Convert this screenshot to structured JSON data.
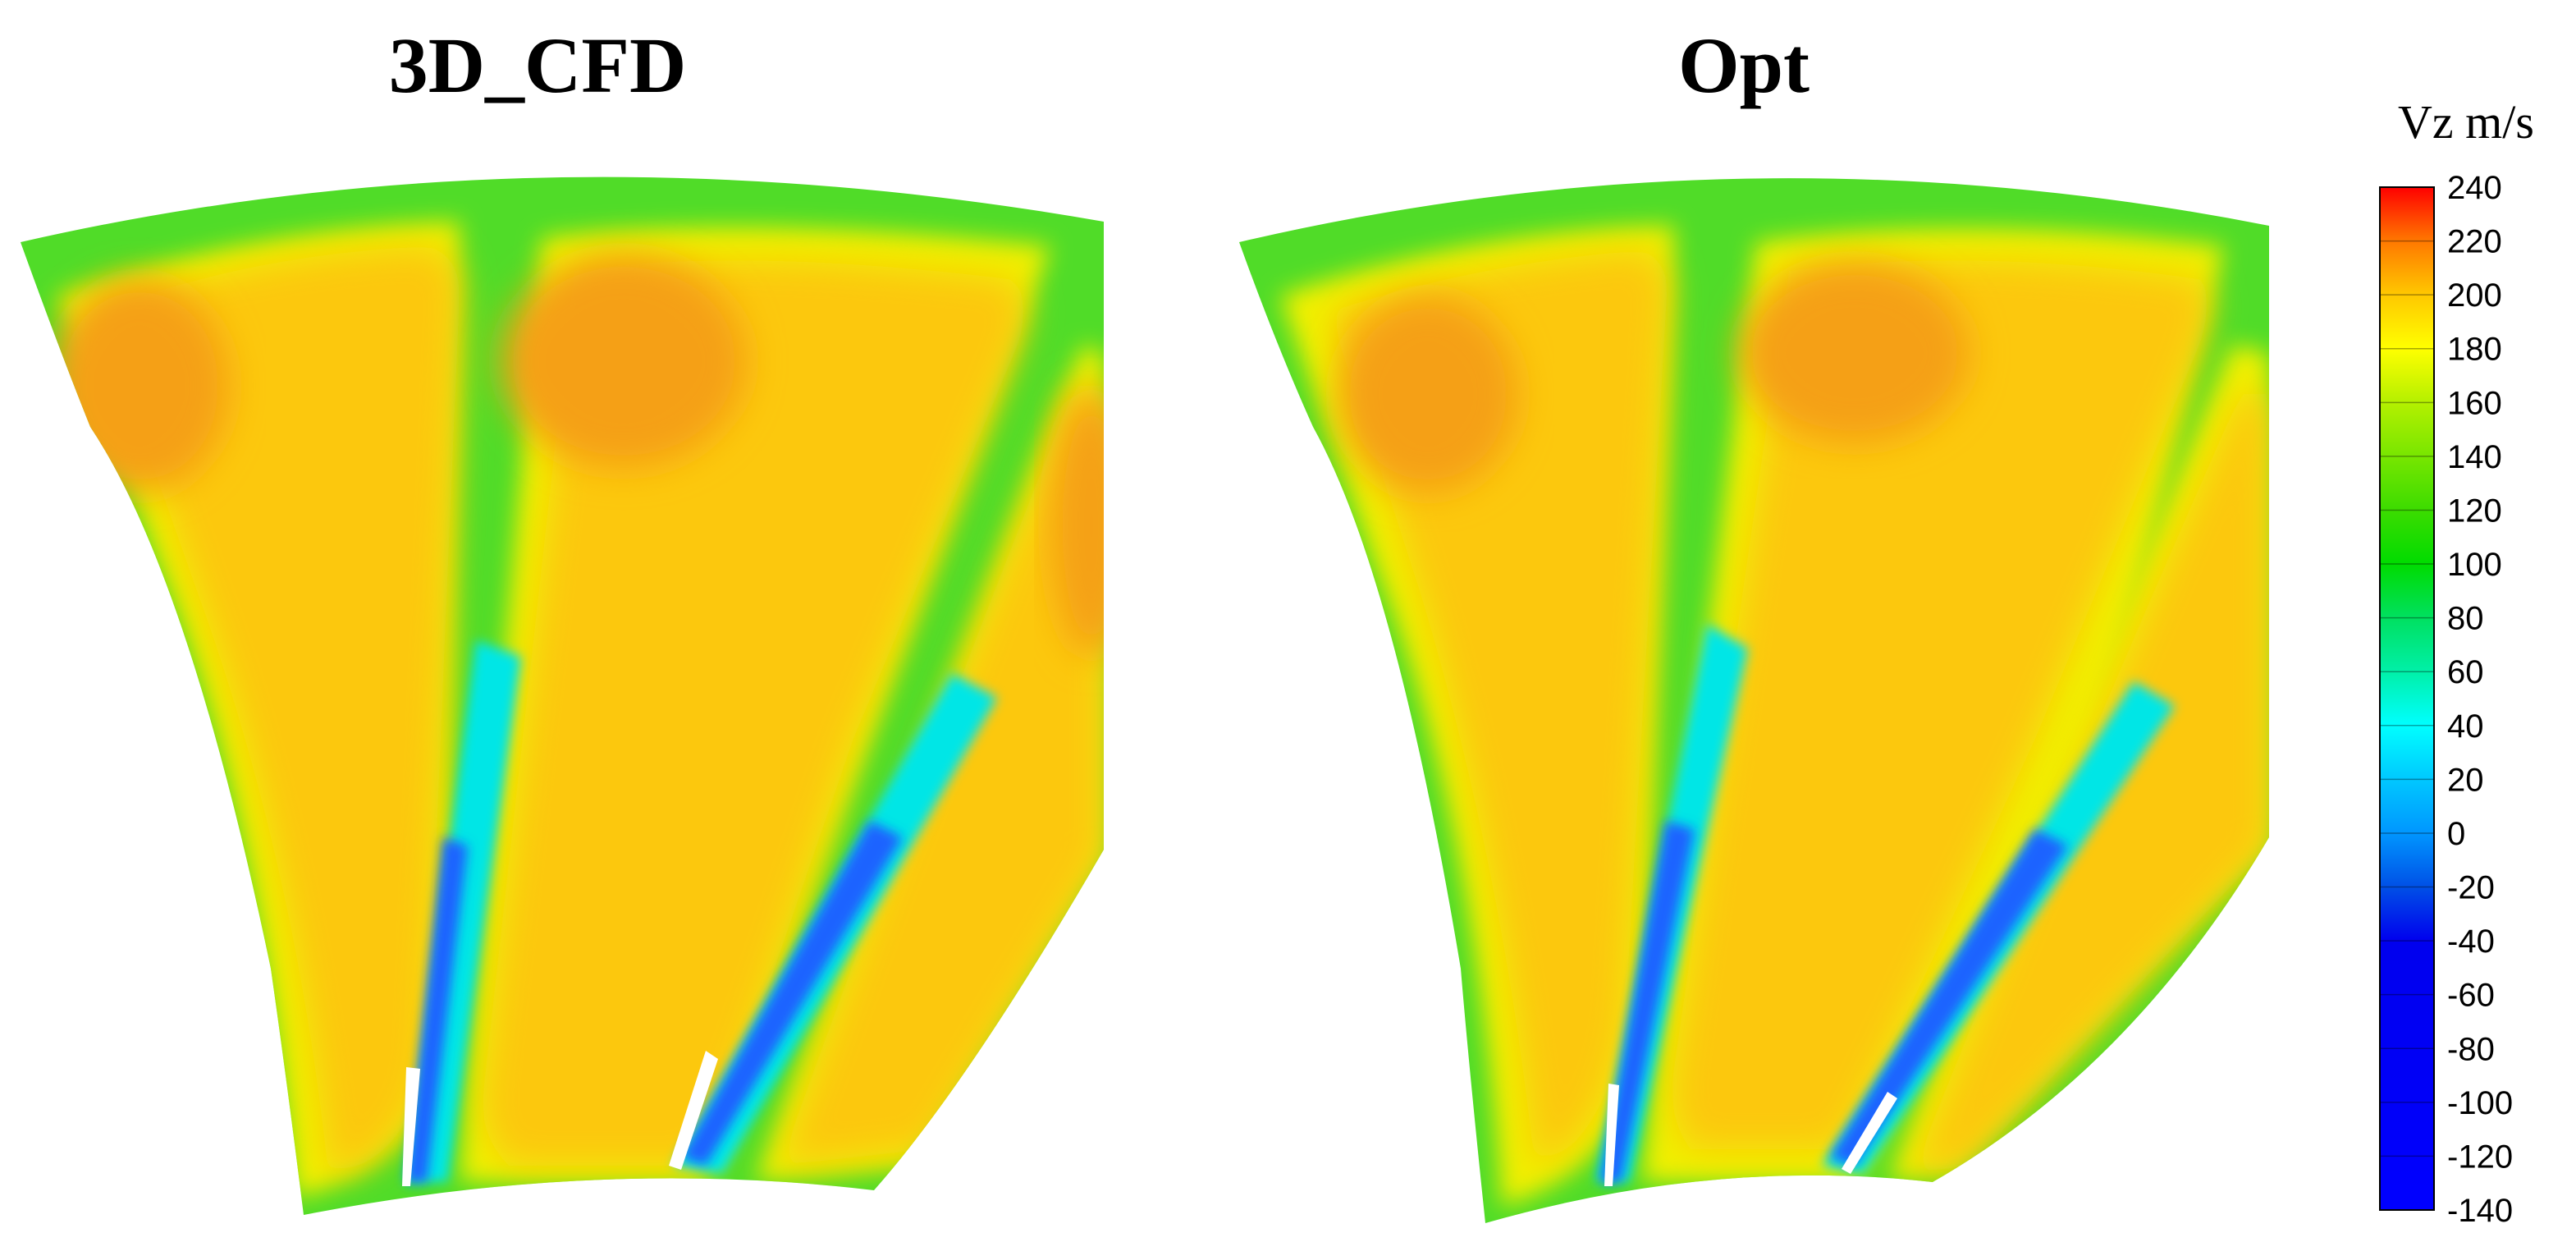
{
  "chart_data": {
    "type": "heatmap",
    "panels": [
      {
        "title": "3D_CFD"
      },
      {
        "title": "Opt"
      }
    ],
    "colorbar": {
      "title": "Vz m/s",
      "range": [
        -140,
        240
      ],
      "step": 20,
      "ticks": [
        "240",
        "220",
        "200",
        "180",
        "160",
        "140",
        "120",
        "100",
        "80",
        "60",
        "40",
        "20",
        "0",
        "-20",
        "-40",
        "-60",
        "-80",
        "-100",
        "-120",
        "-140"
      ],
      "stops": [
        {
          "v": -140,
          "color": "#0000ff"
        },
        {
          "v": -40,
          "color": "#0000ee"
        },
        {
          "v": -20,
          "color": "#0050e6"
        },
        {
          "v": 0,
          "color": "#0096ff"
        },
        {
          "v": 20,
          "color": "#00c8ff"
        },
        {
          "v": 40,
          "color": "#00ffff"
        },
        {
          "v": 60,
          "color": "#00f0a8"
        },
        {
          "v": 80,
          "color": "#00e060"
        },
        {
          "v": 100,
          "color": "#00dc00"
        },
        {
          "v": 120,
          "color": "#3cdc00"
        },
        {
          "v": 140,
          "color": "#78e600"
        },
        {
          "v": 160,
          "color": "#b4f000"
        },
        {
          "v": 180,
          "color": "#ffff00"
        },
        {
          "v": 200,
          "color": "#ffc800"
        },
        {
          "v": 220,
          "color": "#ff7800"
        },
        {
          "v": 240,
          "color": "#ff0000"
        }
      ]
    }
  },
  "colors": {
    "core": "#fcc808",
    "core_hot": "#f5a018",
    "edge_yellow": "#f0f000",
    "edge_green": "#50dc28",
    "wake_blue": "#1e64ff",
    "wake_cyan": "#00e6e6"
  }
}
